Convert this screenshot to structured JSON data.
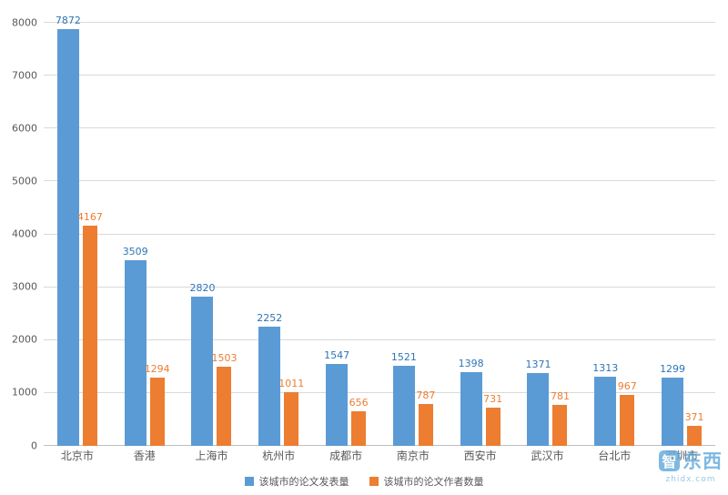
{
  "chart_data": {
    "type": "bar",
    "title": "",
    "categories": [
      "北京市",
      "香港",
      "上海市",
      "杭州市",
      "成都市",
      "南京市",
      "西安市",
      "武汉市",
      "台北市",
      "深圳市"
    ],
    "series": [
      {
        "name": "该城市的论文发表量",
        "color": "#5b9bd5",
        "label_color": "#2e75b6",
        "values": [
          7872,
          3509,
          2820,
          2252,
          1547,
          1521,
          1398,
          1371,
          1313,
          1299
        ]
      },
      {
        "name": "该城市的论文作者数量",
        "color": "#ed7d31",
        "label_color": "#ed7d31",
        "values": [
          4167,
          1294,
          1503,
          1011,
          656,
          787,
          731,
          781,
          967,
          371
        ]
      }
    ],
    "ylim": [
      0,
      8000
    ],
    "ytick_step": 1000,
    "grid": true,
    "legend_position": "bottom"
  },
  "watermark": {
    "logo_char": "智",
    "brand_rest": "东西",
    "subtext": "zhidx.com",
    "color": "#5fa8dc"
  }
}
